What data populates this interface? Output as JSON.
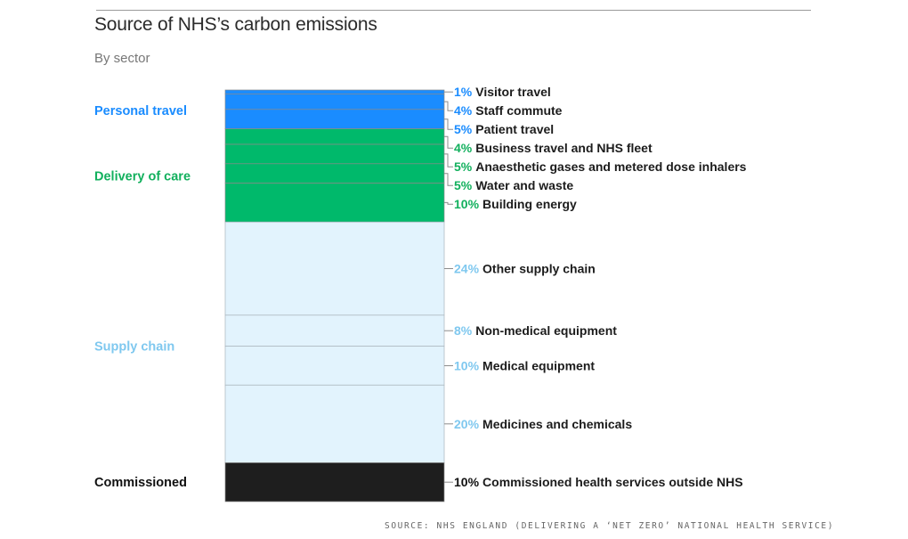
{
  "title": "Source of NHS’s carbon emissions",
  "subtitle": "By sector",
  "source": "SOURCE: NHS ENGLAND (DELIVERING A ‘NET ZERO’ NATIONAL HEALTH SERVICE)",
  "colors": {
    "personal_travel": "#1a8cff",
    "delivery_of_care": "#00b96b",
    "supply_chain": "#e2f3fd",
    "commissioned": "#1e1e1e",
    "personal_travel_text": "#1a8cff",
    "delivery_of_care_text": "#12b05d",
    "supply_chain_text": "#7fc8ef",
    "commissioned_text": "#111111"
  },
  "chart_data": {
    "type": "bar",
    "subtype": "100% stacked single column",
    "title": "Source of NHS’s carbon emissions",
    "subtitle": "By sector",
    "unit": "%",
    "groups": [
      {
        "name": "Personal travel",
        "color_key": "personal_travel",
        "segments": [
          {
            "label": "Visitor travel",
            "value": 1,
            "display": "1%"
          },
          {
            "label": "Staff commute",
            "value": 4,
            "display": "4%"
          },
          {
            "label": "Patient travel",
            "value": 5,
            "display": "5%"
          }
        ]
      },
      {
        "name": "Delivery of care",
        "color_key": "delivery_of_care",
        "segments": [
          {
            "label": "Business travel and NHS fleet",
            "value": 4,
            "display": "4%"
          },
          {
            "label": "Anaesthetic gases and metered dose inhalers",
            "value": 5,
            "display": "5%"
          },
          {
            "label": "Water and waste",
            "value": 5,
            "display": "5%"
          },
          {
            "label": "Building energy",
            "value": 10,
            "display": "10%"
          }
        ]
      },
      {
        "name": "Supply chain",
        "color_key": "supply_chain",
        "segments": [
          {
            "label": "Other supply chain",
            "value": 24,
            "display": "24%"
          },
          {
            "label": "Non-medical equipment",
            "value": 8,
            "display": "8%"
          },
          {
            "label": "Medical equipment",
            "value": 10,
            "display": "10%"
          },
          {
            "label": "Medicines and chemicals",
            "value": 20,
            "display": "20%"
          }
        ]
      },
      {
        "name": "Commissioned",
        "color_key": "commissioned",
        "segments": [
          {
            "label": "Commissioned health services outside NHS",
            "value": 10,
            "display": "10%"
          }
        ]
      }
    ]
  }
}
